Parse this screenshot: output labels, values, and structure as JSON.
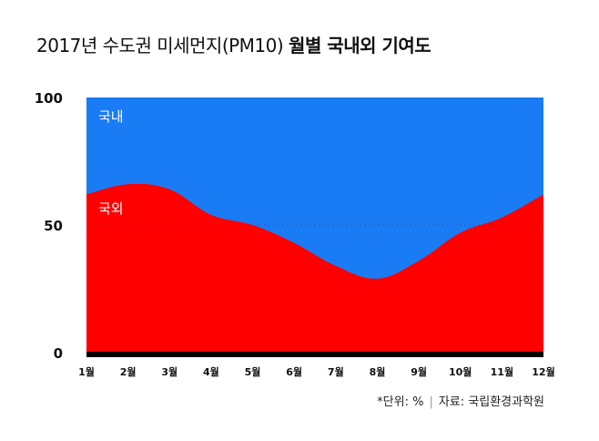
{
  "title": {
    "normal": "2017년 수도권 미세먼지(PM10)",
    "bold": "월별 국내외 기여도"
  },
  "footnote": {
    "unit": "*단위: %",
    "source": "자료: 국립환경과학원"
  },
  "chart_data": {
    "type": "area",
    "stacked": true,
    "categories": [
      "1월",
      "2월",
      "3월",
      "4월",
      "5월",
      "6월",
      "7월",
      "8월",
      "9월",
      "10월",
      "11월",
      "12월"
    ],
    "series": [
      {
        "name": "국외",
        "color": "#ff0000",
        "values": [
          62,
          66,
          64,
          54,
          50,
          43,
          34,
          29,
          36,
          47,
          53,
          62
        ]
      },
      {
        "name": "국내",
        "color": "#1a7cf5",
        "values": [
          38,
          34,
          36,
          46,
          50,
          57,
          66,
          71,
          64,
          53,
          47,
          38
        ]
      }
    ],
    "ylim": [
      0,
      100
    ],
    "yticks": [
      "0",
      "50",
      "100"
    ],
    "grid": "dashed line at 50",
    "legend": "inline labels inside areas"
  }
}
